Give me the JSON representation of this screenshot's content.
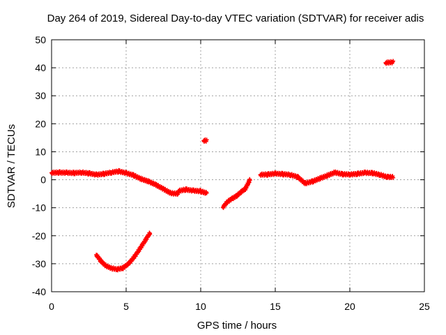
{
  "chart_data": {
    "type": "scatter",
    "title": "Day 264 of 2019, Sidereal Day-to-day VTEC variation (SDTVAR) for receiver adis",
    "xlabel": "GPS time / hours",
    "ylabel": "SDTVAR / TECUs",
    "xlim": [
      0,
      25
    ],
    "ylim": [
      -40,
      50
    ],
    "xticks": [
      0,
      5,
      10,
      15,
      20,
      25
    ],
    "yticks": [
      -40,
      -30,
      -20,
      -10,
      0,
      10,
      20,
      30,
      40,
      50
    ],
    "grid": true,
    "marker": "plus",
    "color": "#ff0000",
    "series": [
      {
        "name": "SDTVAR",
        "segments": [
          {
            "x": [
              0.0,
              0.5,
              1.0,
              1.5,
              2.0,
              2.5,
              3.0,
              3.5,
              4.0,
              4.5,
              5.0,
              5.5,
              6.0,
              6.5,
              7.0,
              7.5,
              8.0,
              8.5
            ],
            "y": [
              2.5,
              2.6,
              2.5,
              2.4,
              2.6,
              2.3,
              1.8,
              2.1,
              2.6,
              3.0,
              2.4,
              1.6,
              0.3,
              -0.6,
              -1.8,
              -3.3,
              -4.8,
              -5.0
            ]
          },
          {
            "x": [
              8.5,
              9.0,
              9.5,
              10.0,
              10.4
            ],
            "y": [
              -4.0,
              -3.5,
              -3.9,
              -4.1,
              -4.8
            ]
          },
          {
            "x": [
              10.2,
              10.4
            ],
            "y": [
              14.0,
              14.0
            ]
          },
          {
            "x": [
              3.0,
              3.3,
              3.6,
              4.0,
              4.4,
              4.8,
              5.2,
              5.6,
              6.0,
              6.3,
              6.6
            ],
            "y": [
              -26.8,
              -29.0,
              -30.6,
              -31.6,
              -32.0,
              -31.5,
              -29.8,
              -27.2,
              -24.0,
              -21.5,
              -19.0
            ]
          },
          {
            "x": [
              11.5,
              11.8,
              12.1,
              12.4,
              12.7,
              13.0,
              13.3
            ],
            "y": [
              -9.8,
              -7.8,
              -6.8,
              -5.8,
              -4.4,
              -3.2,
              0.0
            ]
          },
          {
            "x": [
              14.0,
              14.5,
              15.0,
              15.5,
              16.0,
              16.5,
              17.0,
              17.5,
              18.0,
              18.5,
              19.0,
              19.5,
              20.0,
              20.5,
              21.0,
              21.5,
              22.0,
              22.5,
              22.9
            ],
            "y": [
              1.8,
              1.9,
              2.2,
              2.0,
              1.8,
              1.0,
              -1.3,
              -0.6,
              0.5,
              1.5,
              2.6,
              2.0,
              1.9,
              2.1,
              2.5,
              2.4,
              1.8,
              1.0,
              1.0
            ]
          },
          {
            "x": [
              22.4,
              22.9
            ],
            "y": [
              41.8,
              42.0
            ]
          }
        ]
      }
    ]
  }
}
